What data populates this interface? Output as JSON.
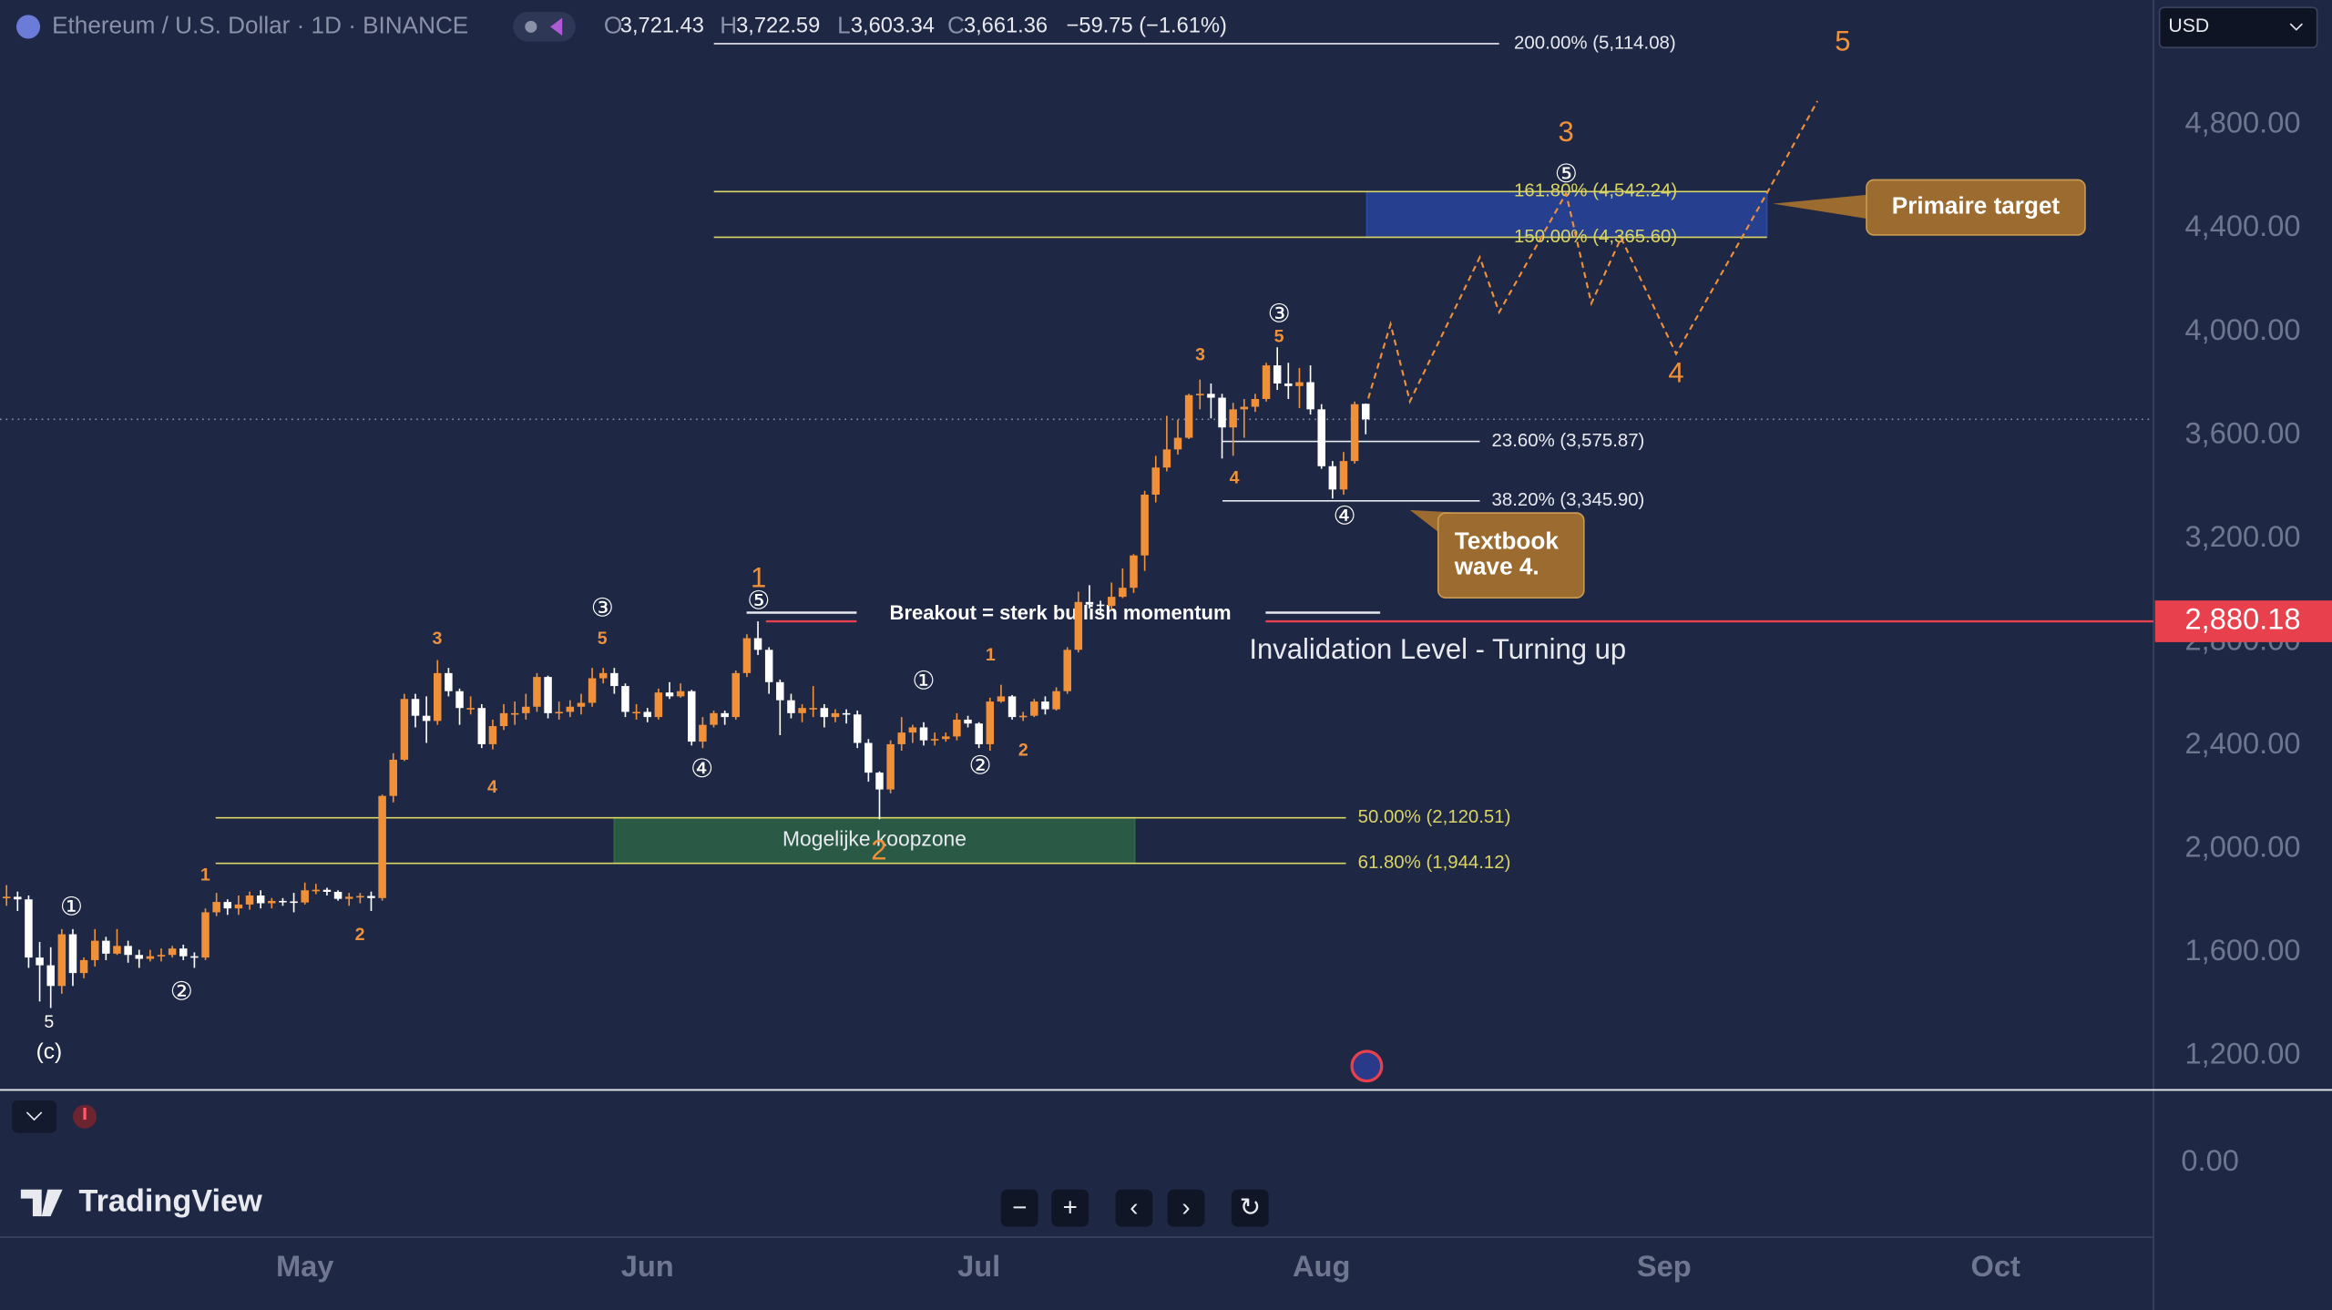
{
  "header": {
    "symbol": "Ethereum / U.S. Dollar · 1D · BINANCE",
    "ohlc": [
      {
        "key": "O",
        "text": "3,721.43"
      },
      {
        "key": "H",
        "text": "3,722.59"
      },
      {
        "key": "L",
        "text": "3,603.34"
      },
      {
        "key": "C",
        "text": "3,661.36"
      }
    ],
    "change": "−59.75 (−1.61%)",
    "currency": "USD"
  },
  "chart_data": {
    "type": "candlestick",
    "categories": [
      null,
      null,
      null,
      null,
      null,
      null,
      null,
      null,
      null,
      null,
      null,
      null,
      null,
      null,
      null,
      null,
      null,
      null,
      null,
      null,
      null,
      null,
      null,
      null,
      null,
      null,
      null,
      "May",
      null,
      null,
      null,
      null,
      null,
      null,
      null,
      null,
      null,
      null,
      null,
      null,
      null,
      null,
      null,
      null,
      null,
      null,
      null,
      null,
      null,
      null,
      null,
      null,
      null,
      null,
      null,
      null,
      null,
      null,
      "Jun",
      null,
      null,
      null,
      null,
      null,
      null,
      null,
      null,
      null,
      null,
      null,
      null,
      null,
      null,
      null,
      null,
      null,
      null,
      null,
      null,
      null,
      null,
      null,
      null,
      null,
      null,
      null,
      null,
      null,
      "Jul",
      null,
      null,
      null,
      null,
      null,
      null,
      null,
      null,
      null,
      null,
      null,
      null,
      null,
      null,
      null,
      null,
      null,
      null,
      null,
      null,
      null,
      null,
      null,
      null,
      null,
      null,
      null,
      null,
      null,
      null,
      "Aug",
      null,
      null,
      null,
      null
    ],
    "open": [
      1810,
      1815,
      1805,
      1580,
      1550,
      1470,
      1670,
      1520,
      1570,
      1645,
      1595,
      1625,
      1590,
      1575,
      1585,
      1590,
      1615,
      1585,
      1580,
      1755,
      1795,
      1770,
      1785,
      1820,
      1790,
      1799,
      1797,
      1793,
      1840,
      1842,
      1834,
      1807,
      1815,
      1818,
      1810,
      2205,
      2345,
      2580,
      2515,
      2495,
      2680,
      2610,
      2545,
      2545,
      2405,
      2475,
      2525,
      2525,
      2550,
      2665,
      2525,
      2530,
      2550,
      2565,
      2660,
      2680,
      2630,
      2530,
      2530,
      2510,
      2605,
      2590,
      2610,
      2415,
      2480,
      2525,
      2510,
      2680,
      2815,
      2770,
      2645,
      2575,
      2525,
      2545,
      2545,
      2510,
      2525,
      2520,
      2410,
      2295,
      2230,
      2405,
      2450,
      2470,
      2420,
      2425,
      2435,
      2500,
      2485,
      2405,
      2570,
      2590,
      2510,
      2515,
      2570,
      2540,
      2610,
      2770,
      2955,
      2945,
      2940,
      2975,
      3010,
      3135,
      3370,
      3475,
      3545,
      3590,
      3755,
      3760,
      3745,
      3630,
      3700,
      3710,
      3740,
      3870,
      3800,
      3790,
      3805,
      3700,
      3480,
      3390,
      3500,
      3721.43
    ],
    "high": [
      1860,
      1835,
      1820,
      1640,
      1620,
      1690,
      1690,
      1580,
      1690,
      1660,
      1690,
      1645,
      1610,
      1610,
      1615,
      1625,
      1630,
      1600,
      1770,
      1830,
      1805,
      1820,
      1835,
      1840,
      1810,
      1810,
      1830,
      1870,
      1865,
      1850,
      1840,
      1830,
      1830,
      1835,
      2210,
      2370,
      2600,
      2600,
      2590,
      2730,
      2700,
      2620,
      2590,
      2560,
      2500,
      2560,
      2570,
      2600,
      2680,
      2670,
      2570,
      2575,
      2600,
      2700,
      2700,
      2700,
      2640,
      2560,
      2545,
      2620,
      2645,
      2640,
      2615,
      2510,
      2535,
      2535,
      2690,
      2830,
      2880,
      2780,
      2655,
      2600,
      2560,
      2630,
      2560,
      2540,
      2540,
      2535,
      2425,
      2300,
      2420,
      2510,
      2480,
      2490,
      2450,
      2450,
      2525,
      2515,
      2490,
      2585,
      2635,
      2595,
      2530,
      2580,
      2590,
      2625,
      2780,
      2995,
      3020,
      2960,
      3030,
      3085,
      3140,
      3385,
      3520,
      3675,
      3660,
      3760,
      3815,
      3800,
      3760,
      3725,
      3740,
      3760,
      3880,
      3940,
      3880,
      3860,
      3870,
      3720,
      3500,
      3535,
      3730,
      3722.59
    ],
    "low": [
      1780,
      1760,
      1540,
      1410,
      1385,
      1440,
      1470,
      1500,
      1545,
      1570,
      1590,
      1560,
      1540,
      1565,
      1565,
      1580,
      1570,
      1540,
      1570,
      1740,
      1745,
      1745,
      1765,
      1770,
      1770,
      1780,
      1755,
      1785,
      1825,
      1820,
      1800,
      1780,
      1790,
      1760,
      1800,
      2180,
      2340,
      2470,
      2410,
      2480,
      2590,
      2480,
      2520,
      2390,
      2385,
      2460,
      2480,
      2500,
      2530,
      2505,
      2500,
      2510,
      2520,
      2550,
      2640,
      2600,
      2510,
      2500,
      2490,
      2500,
      2580,
      2585,
      2400,
      2390,
      2470,
      2480,
      2500,
      2665,
      2750,
      2600,
      2440,
      2505,
      2490,
      2510,
      2470,
      2490,
      2485,
      2390,
      2260,
      2115,
      2215,
      2380,
      2410,
      2400,
      2400,
      2415,
      2420,
      2470,
      2390,
      2380,
      2565,
      2500,
      2495,
      2510,
      2520,
      2535,
      2600,
      2760,
      2930,
      2905,
      2925,
      2970,
      2990,
      3075,
      3340,
      3460,
      3525,
      3585,
      3700,
      3665,
      3510,
      3520,
      3590,
      3690,
      3730,
      3775,
      3740,
      3705,
      3680,
      3470,
      3355,
      3370,
      3490,
      3603.34
    ],
    "close": [
      1815,
      1805,
      1580,
      1550,
      1470,
      1670,
      1520,
      1570,
      1645,
      1595,
      1625,
      1590,
      1575,
      1585,
      1590,
      1615,
      1585,
      1580,
      1755,
      1795,
      1770,
      1785,
      1820,
      1790,
      1799,
      1797,
      1793,
      1840,
      1842,
      1834,
      1807,
      1815,
      1818,
      1810,
      2205,
      2345,
      2580,
      2515,
      2495,
      2680,
      2610,
      2545,
      2545,
      2405,
      2475,
      2525,
      2525,
      2550,
      2665,
      2525,
      2530,
      2550,
      2565,
      2660,
      2680,
      2630,
      2530,
      2530,
      2510,
      2605,
      2590,
      2610,
      2415,
      2480,
      2525,
      2510,
      2680,
      2815,
      2770,
      2645,
      2575,
      2525,
      2545,
      2545,
      2510,
      2525,
      2520,
      2410,
      2295,
      2230,
      2405,
      2450,
      2470,
      2420,
      2425,
      2435,
      2500,
      2485,
      2405,
      2570,
      2590,
      2510,
      2515,
      2570,
      2540,
      2610,
      2770,
      2955,
      2945,
      2940,
      2975,
      3010,
      3135,
      3370,
      3475,
      3545,
      3590,
      3755,
      3760,
      3745,
      3630,
      3700,
      3710,
      3740,
      3870,
      3800,
      3790,
      3805,
      3700,
      3480,
      3390,
      3500,
      3720,
      3661.36
    ],
    "up_color": "#f0913a",
    "down_color": "#ffffff",
    "ylim": [
      1068,
      5283
    ],
    "yticks": [
      {
        "value": 1200,
        "label": "1,200.00"
      },
      {
        "value": 1600,
        "label": "1,600.00"
      },
      {
        "value": 2000,
        "label": "2,000.00"
      },
      {
        "value": 2400,
        "label": "2,400.00"
      },
      {
        "value": 2800,
        "label": "2,800.00"
      },
      {
        "value": 3200,
        "label": "3,200.00"
      },
      {
        "value": 3600,
        "label": "3,600.00"
      },
      {
        "value": 4000,
        "label": "4,000.00"
      },
      {
        "value": 4400,
        "label": "4,400.00"
      },
      {
        "value": 4800,
        "label": "4,800.00"
      }
    ],
    "pane2_yticks": [
      {
        "value": 0,
        "label": "0.00"
      }
    ],
    "future_categories": [
      "Sep",
      "Oct"
    ],
    "fib_levels": [
      {
        "label": "200.00% (5,114.08)",
        "value": 5114.08,
        "color": "#e8eaf0"
      },
      {
        "label": "161.80% (4,542.24)",
        "value": 4542.24,
        "color": "#d9d463"
      },
      {
        "label": "150.00% (4,365.60)",
        "value": 4365.6,
        "color": "#d9d463"
      },
      {
        "label": "23.60% (3,575.87)",
        "value": 3575.87,
        "color": "#e8eaf0"
      },
      {
        "label": "38.20% (3,345.90)",
        "value": 3345.9,
        "color": "#e8eaf0"
      },
      {
        "label": "50.00% (2,120.51)",
        "value": 2120.51,
        "color": "#d9d463"
      },
      {
        "label": "61.80% (1,944.12)",
        "value": 1944.12,
        "color": "#d9d463"
      }
    ],
    "zones": [
      {
        "color": "#2a4aa8",
        "label": null
      },
      {
        "color": "#2f6b45",
        "label": "Mogelijke koopzone"
      }
    ],
    "invalidation": {
      "value": 2880.18,
      "label": "2,880.18",
      "text": "Invalidation Level - Turning up",
      "color": "#e8414d"
    },
    "breakout": "Breakout = sterk bullish momentum",
    "wave_big": [
      "5",
      "3",
      "4",
      "1",
      "2"
    ],
    "wave_small": [
      "3",
      "4",
      "5",
      "1",
      "2",
      "3",
      "5",
      "4",
      "1",
      "2"
    ],
    "wave_white": [
      "5",
      "(c)"
    ],
    "wave_circled": [
      "①",
      "②",
      "③",
      "④",
      "⑤",
      "①",
      "②",
      "③",
      "⑤",
      "④"
    ],
    "callouts": [
      {
        "lines": [
          "Primaire target"
        ]
      },
      {
        "lines": [
          "Textbook",
          "wave 4."
        ]
      }
    ]
  },
  "footer": {
    "brand": "TradingView",
    "controls": [
      "−",
      "+",
      "‹",
      "›",
      "↻"
    ]
  }
}
